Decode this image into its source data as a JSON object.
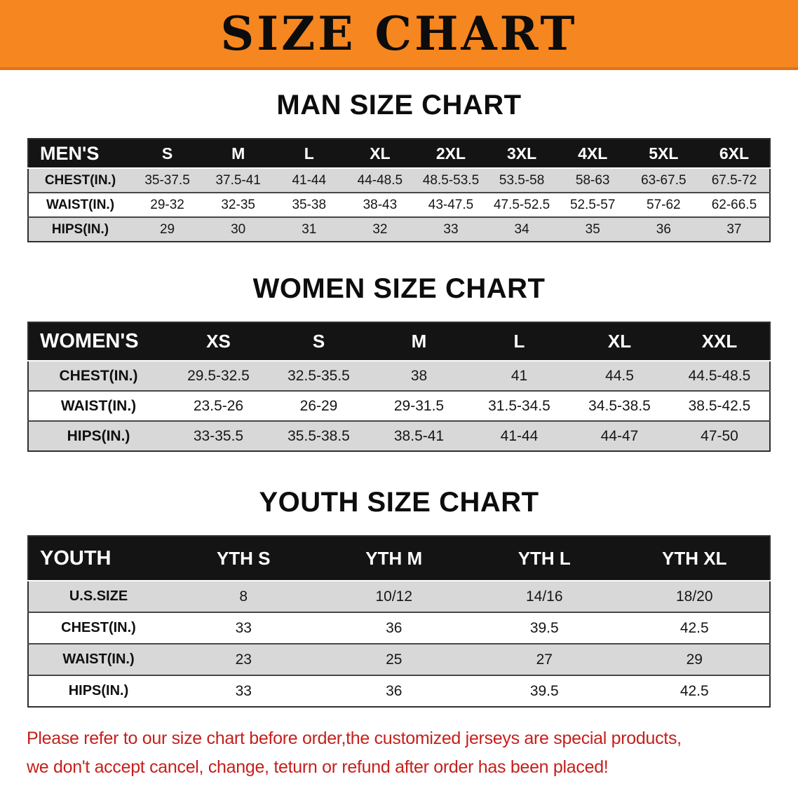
{
  "banner": {
    "title": "SIZE CHART"
  },
  "colors": {
    "banner_bg": "#f6861f",
    "banner_edge": "#e0731a",
    "header_bg": "#141414",
    "row_alt": "#d8d8d8",
    "note_red": "#c5201c"
  },
  "chart_data": [
    {
      "type": "table",
      "title": "MAN SIZE CHART",
      "header": [
        "MEN'S",
        "S",
        "M",
        "L",
        "XL",
        "2XL",
        "3XL",
        "4XL",
        "5XL",
        "6XL"
      ],
      "rows": [
        [
          "CHEST(IN.)",
          "35-37.5",
          "37.5-41",
          "41-44",
          "44-48.5",
          "48.5-53.5",
          "53.5-58",
          "58-63",
          "63-67.5",
          "67.5-72"
        ],
        [
          "WAIST(IN.)",
          "29-32",
          "32-35",
          "35-38",
          "38-43",
          "43-47.5",
          "47.5-52.5",
          "52.5-57",
          "57-62",
          "62-66.5"
        ],
        [
          "HIPS(IN.)",
          "29",
          "30",
          "31",
          "32",
          "33",
          "34",
          "35",
          "36",
          "37"
        ]
      ]
    },
    {
      "type": "table",
      "title": "WOMEN SIZE CHART",
      "header": [
        "WOMEN'S",
        "XS",
        "S",
        "M",
        "L",
        "XL",
        "XXL"
      ],
      "rows": [
        [
          "CHEST(IN.)",
          "29.5-32.5",
          "32.5-35.5",
          "38",
          "41",
          "44.5",
          "44.5-48.5"
        ],
        [
          "WAIST(IN.)",
          "23.5-26",
          "26-29",
          "29-31.5",
          "31.5-34.5",
          "34.5-38.5",
          "38.5-42.5"
        ],
        [
          "HIPS(IN.)",
          "33-35.5",
          "35.5-38.5",
          "38.5-41",
          "41-44",
          "44-47",
          "47-50"
        ]
      ]
    },
    {
      "type": "table",
      "title": "YOUTH SIZE CHART",
      "header": [
        "YOUTH",
        "YTH S",
        "YTH M",
        "YTH L",
        "YTH XL"
      ],
      "rows": [
        [
          "U.S.SIZE",
          "8",
          "10/12",
          "14/16",
          "18/20"
        ],
        [
          "CHEST(IN.)",
          "33",
          "36",
          "39.5",
          "42.5"
        ],
        [
          "WAIST(IN.)",
          "23",
          "25",
          "27",
          "29"
        ],
        [
          "HIPS(IN.)",
          "33",
          "36",
          "39.5",
          "42.5"
        ]
      ]
    }
  ],
  "note": {
    "line1": "Please refer to our size chart before order,the customized jerseys are special products,",
    "line2": "we don't accept cancel, change, teturn or refund after order has been placed!"
  }
}
